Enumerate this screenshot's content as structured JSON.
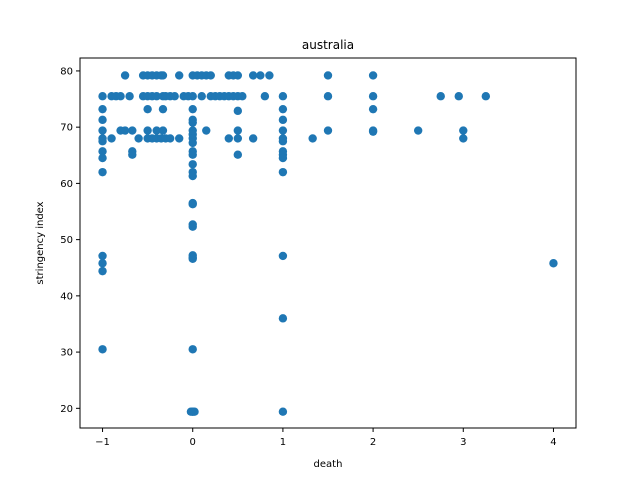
{
  "chart_data": {
    "type": "scatter",
    "title": "australia",
    "xlabel": "death",
    "ylabel": "stringency index",
    "xlim": [
      -1.25,
      4.25
    ],
    "ylim": [
      16.5,
      82.3
    ],
    "xticks": [
      -1,
      0,
      1,
      2,
      3,
      4
    ],
    "xtick_labels": [
      "−1",
      "0",
      "1",
      "2",
      "3",
      "4"
    ],
    "yticks": [
      20,
      30,
      40,
      50,
      60,
      70,
      80
    ],
    "ytick_labels": [
      "20",
      "30",
      "40",
      "50",
      "60",
      "70",
      "80"
    ],
    "grid": false,
    "marker_color": "#1f77b4",
    "series": [
      {
        "points": [
          [
            -1,
            75.5
          ],
          [
            -1,
            73.2
          ],
          [
            -1,
            71.3
          ],
          [
            -1,
            69.4
          ],
          [
            -1,
            68.0
          ],
          [
            -1,
            67.5
          ],
          [
            -1,
            65.7
          ],
          [
            -1,
            64.5
          ],
          [
            -1,
            62.0
          ],
          [
            -1,
            47.1
          ],
          [
            -1,
            45.8
          ],
          [
            -1,
            44.4
          ],
          [
            -1,
            30.5
          ],
          [
            -0.9,
            75.5
          ],
          [
            -0.9,
            68.0
          ],
          [
            -0.85,
            75.5
          ],
          [
            -0.8,
            75.5
          ],
          [
            -0.75,
            79.2
          ],
          [
            -0.75,
            69.4
          ],
          [
            -0.7,
            75.5
          ],
          [
            -0.8,
            69.4
          ],
          [
            -0.67,
            69.4
          ],
          [
            -0.67,
            65.7
          ],
          [
            -0.67,
            65.1
          ],
          [
            -0.6,
            68.0
          ],
          [
            -0.55,
            79.2
          ],
          [
            -0.5,
            79.2
          ],
          [
            -0.45,
            79.2
          ],
          [
            -0.4,
            79.2
          ],
          [
            -0.35,
            79.2
          ],
          [
            -0.33,
            79.2
          ],
          [
            -0.55,
            75.5
          ],
          [
            -0.5,
            75.5
          ],
          [
            -0.45,
            75.5
          ],
          [
            -0.4,
            75.5
          ],
          [
            -0.33,
            75.5
          ],
          [
            -0.3,
            75.5
          ],
          [
            -0.25,
            75.5
          ],
          [
            -0.2,
            75.5
          ],
          [
            -0.5,
            73.2
          ],
          [
            -0.33,
            73.2
          ],
          [
            -0.5,
            69.4
          ],
          [
            -0.4,
            69.4
          ],
          [
            -0.33,
            69.4
          ],
          [
            -0.5,
            68.0
          ],
          [
            -0.45,
            68.0
          ],
          [
            -0.4,
            68.0
          ],
          [
            -0.35,
            68.0
          ],
          [
            -0.3,
            68.0
          ],
          [
            -0.25,
            68.0
          ],
          [
            -0.15,
            79.2
          ],
          [
            -0.15,
            68.0
          ],
          [
            -0.1,
            75.5
          ],
          [
            -0.05,
            75.5
          ],
          [
            0,
            79.2
          ],
          [
            0,
            75.5
          ],
          [
            0,
            73.2
          ],
          [
            0,
            71.3
          ],
          [
            0,
            70.8
          ],
          [
            0,
            69.4
          ],
          [
            0,
            68.7
          ],
          [
            0,
            68.0
          ],
          [
            0,
            67.2
          ],
          [
            0,
            65.7
          ],
          [
            0,
            65.1
          ],
          [
            0,
            63.4
          ],
          [
            0,
            62.0
          ],
          [
            0,
            61.3
          ],
          [
            0,
            56.5
          ],
          [
            0,
            56.3
          ],
          [
            0,
            52.7
          ],
          [
            0,
            52.3
          ],
          [
            0,
            47.2
          ],
          [
            0,
            46.8
          ],
          [
            0,
            46.6
          ],
          [
            0,
            30.5
          ],
          [
            0,
            19.4
          ],
          [
            0,
            19.4
          ],
          [
            0.02,
            19.4
          ],
          [
            -0.02,
            19.4
          ],
          [
            0.05,
            79.2
          ],
          [
            0.1,
            79.2
          ],
          [
            0.1,
            75.5
          ],
          [
            0.15,
            79.2
          ],
          [
            0.15,
            69.4
          ],
          [
            0.2,
            79.2
          ],
          [
            0.2,
            75.5
          ],
          [
            0.25,
            75.5
          ],
          [
            0.3,
            75.5
          ],
          [
            0.35,
            75.5
          ],
          [
            0.4,
            79.2
          ],
          [
            0.4,
            75.5
          ],
          [
            0.4,
            68.0
          ],
          [
            0.45,
            79.2
          ],
          [
            0.45,
            75.5
          ],
          [
            0.5,
            79.2
          ],
          [
            0.5,
            75.5
          ],
          [
            0.5,
            72.9
          ],
          [
            0.5,
            69.4
          ],
          [
            0.5,
            68.0
          ],
          [
            0.5,
            65.1
          ],
          [
            0.55,
            75.5
          ],
          [
            0.67,
            79.2
          ],
          [
            0.67,
            68.0
          ],
          [
            0.75,
            79.2
          ],
          [
            0.8,
            75.5
          ],
          [
            0.85,
            79.2
          ],
          [
            1,
            75.5
          ],
          [
            1,
            73.2
          ],
          [
            1,
            71.3
          ],
          [
            1,
            69.4
          ],
          [
            1,
            68.0
          ],
          [
            1,
            67.5
          ],
          [
            1,
            65.7
          ],
          [
            1,
            65.1
          ],
          [
            1,
            64.5
          ],
          [
            1,
            62.0
          ],
          [
            1,
            47.1
          ],
          [
            1,
            36.0
          ],
          [
            1,
            19.4
          ],
          [
            1.33,
            68.0
          ],
          [
            1.5,
            79.2
          ],
          [
            1.5,
            75.5
          ],
          [
            1.5,
            69.4
          ],
          [
            2,
            79.2
          ],
          [
            2,
            75.5
          ],
          [
            2,
            73.2
          ],
          [
            2,
            69.4
          ],
          [
            2,
            69.2
          ],
          [
            2.5,
            69.4
          ],
          [
            2.75,
            75.5
          ],
          [
            2.95,
            75.5
          ],
          [
            3,
            69.4
          ],
          [
            3,
            68.0
          ],
          [
            3.25,
            75.5
          ],
          [
            4,
            45.8
          ]
        ]
      }
    ]
  }
}
